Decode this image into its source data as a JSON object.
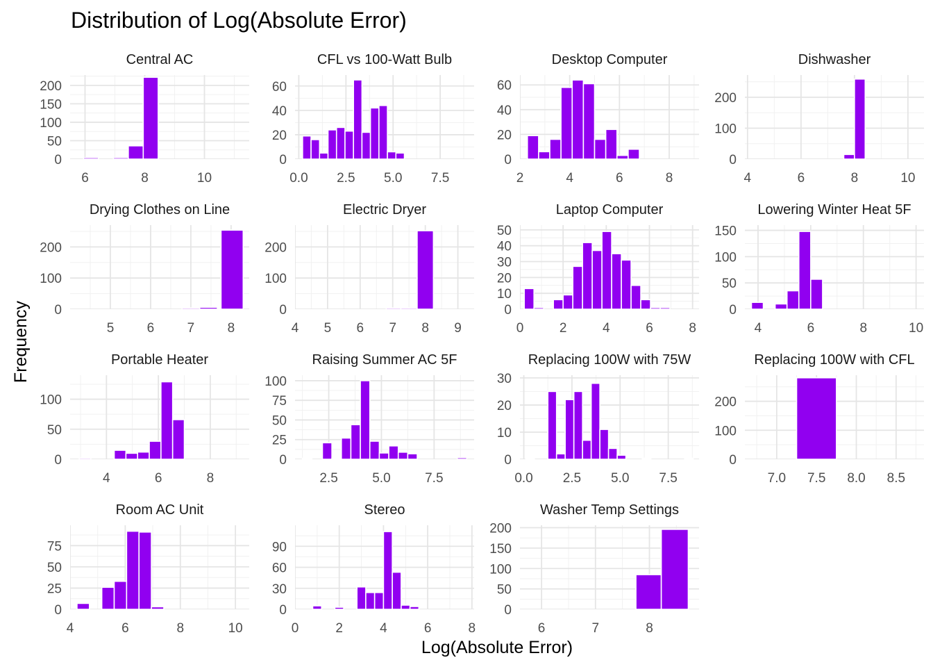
{
  "chart_data": {
    "type": "bar",
    "title": "Distribution of Log(Absolute Error)",
    "xlabel": "Log(Absolute Error)",
    "ylabel": "Frequency",
    "bar_color": "#9100F0",
    "grid": true,
    "legend": "none",
    "facets": [
      {
        "name": "Central AC",
        "xlim": [
          5.5,
          11.5
        ],
        "ylim": [
          0,
          228
        ],
        "xticks": [
          6,
          8,
          10
        ],
        "yticks": [
          0,
          50,
          100,
          150,
          200
        ],
        "bins": [
          [
            5.95,
            6.45,
            4
          ],
          [
            6.95,
            7.45,
            4
          ],
          [
            7.45,
            7.95,
            36
          ],
          [
            7.95,
            8.45,
            222
          ]
        ]
      },
      {
        "name": "CFL vs 100-Watt Bulb",
        "xlim": [
          -0.2,
          9.3
        ],
        "ylim": [
          0,
          69
        ],
        "xticks": [
          0.0,
          2.5,
          5.0,
          7.5
        ],
        "yticks": [
          0,
          20,
          40,
          60
        ],
        "bins": [
          [
            0.2,
            0.65,
            19
          ],
          [
            0.65,
            1.1,
            16
          ],
          [
            1.1,
            1.55,
            5
          ],
          [
            1.55,
            2.0,
            24
          ],
          [
            2.0,
            2.45,
            26
          ],
          [
            2.45,
            2.9,
            23
          ],
          [
            2.9,
            3.35,
            65
          ],
          [
            3.35,
            3.8,
            22
          ],
          [
            3.8,
            4.25,
            42
          ],
          [
            4.25,
            4.7,
            44
          ],
          [
            4.7,
            5.15,
            6
          ],
          [
            5.15,
            5.6,
            5
          ]
        ]
      },
      {
        "name": "Desktop Computer",
        "xlim": [
          2.0,
          9.2
        ],
        "ylim": [
          0,
          68
        ],
        "xticks": [
          2,
          4,
          6,
          8
        ],
        "yticks": [
          0,
          20,
          40,
          60
        ],
        "bins": [
          [
            2.3,
            2.75,
            19
          ],
          [
            2.75,
            3.2,
            6
          ],
          [
            3.2,
            3.65,
            16
          ],
          [
            3.65,
            4.1,
            58
          ],
          [
            4.1,
            4.55,
            64
          ],
          [
            4.55,
            5.0,
            61
          ],
          [
            5.0,
            5.45,
            16
          ],
          [
            5.45,
            5.9,
            24
          ],
          [
            5.9,
            6.35,
            3
          ],
          [
            6.35,
            6.8,
            8
          ]
        ]
      },
      {
        "name": "Dishwasher",
        "xlim": [
          3.9,
          10.6
        ],
        "ylim": [
          0,
          272
        ],
        "xticks": [
          4,
          6,
          8,
          10
        ],
        "yticks": [
          0,
          100,
          200
        ],
        "bins": [
          [
            7.6,
            8.0,
            15
          ],
          [
            8.0,
            8.4,
            259
          ]
        ]
      },
      {
        "name": "Drying Clothes on Line",
        "xlim": [
          4.0,
          8.45
        ],
        "ylim": [
          0,
          270
        ],
        "xticks": [
          5,
          6,
          7,
          8
        ],
        "yticks": [
          0,
          100,
          200
        ],
        "bins": [
          [
            6.78,
            7.22,
            4
          ],
          [
            7.22,
            7.66,
            6
          ],
          [
            7.66,
            8.1,
            2
          ],
          [
            7.75,
            8.3,
            254
          ]
        ]
      },
      {
        "name": "Electric Dryer",
        "xlim": [
          4.0,
          9.5
        ],
        "ylim": [
          0,
          270
        ],
        "xticks": [
          4,
          5,
          6,
          7,
          8,
          9
        ],
        "yticks": [
          0,
          100,
          200
        ],
        "bins": [
          [
            6.8,
            7.25,
            4
          ],
          [
            7.25,
            7.75,
            4
          ],
          [
            7.75,
            8.25,
            252
          ]
        ]
      },
      {
        "name": "Laptop Computer",
        "xlim": [
          0.0,
          8.3
        ],
        "ylim": [
          0,
          53
        ],
        "xticks": [
          0,
          2,
          4,
          6,
          8
        ],
        "yticks": [
          0,
          10,
          20,
          30,
          40,
          50
        ],
        "bins": [
          [
            0.2,
            0.65,
            13
          ],
          [
            0.65,
            1.1,
            1
          ],
          [
            1.55,
            2.0,
            6
          ],
          [
            2.0,
            2.45,
            9
          ],
          [
            2.45,
            2.9,
            27
          ],
          [
            2.9,
            3.35,
            42
          ],
          [
            3.35,
            3.8,
            37
          ],
          [
            3.8,
            4.25,
            49
          ],
          [
            4.25,
            4.7,
            35
          ],
          [
            4.7,
            5.15,
            31
          ],
          [
            5.15,
            5.6,
            15
          ],
          [
            5.6,
            6.05,
            6
          ],
          [
            6.05,
            6.5,
            1
          ],
          [
            6.5,
            6.95,
            1
          ]
        ]
      },
      {
        "name": "Lowering Winter Heat 5F",
        "xlim": [
          3.5,
          10.3
        ],
        "ylim": [
          0,
          160
        ],
        "xticks": [
          4,
          6,
          8,
          10
        ],
        "yticks": [
          0,
          50,
          100,
          150
        ],
        "bins": [
          [
            3.75,
            4.2,
            13
          ],
          [
            4.65,
            5.1,
            10
          ],
          [
            5.1,
            5.55,
            35
          ],
          [
            5.55,
            6.0,
            148
          ],
          [
            6.0,
            6.45,
            57
          ]
        ]
      },
      {
        "name": "Portable Heater",
        "xlim": [
          2.6,
          9.5
        ],
        "ylim": [
          0,
          140
        ],
        "xticks": [
          4,
          6,
          8
        ],
        "yticks": [
          0,
          50,
          100
        ],
        "bins": [
          [
            2.95,
            3.4,
            2
          ],
          [
            4.3,
            4.75,
            15
          ],
          [
            4.75,
            5.2,
            10
          ],
          [
            5.2,
            5.65,
            12
          ],
          [
            5.65,
            6.1,
            30
          ],
          [
            6.1,
            6.55,
            129
          ],
          [
            6.55,
            7.0,
            66
          ]
        ]
      },
      {
        "name": "Raising Summer AC 5F",
        "xlim": [
          0.9,
          9.4
        ],
        "ylim": [
          0,
          107
        ],
        "xticks": [
          2.5,
          5.0,
          7.5
        ],
        "yticks": [
          0,
          25,
          50,
          75,
          100
        ],
        "bins": [
          [
            1.25,
            1.7,
            1
          ],
          [
            2.2,
            2.65,
            21
          ],
          [
            2.65,
            3.1,
            1
          ],
          [
            3.1,
            3.55,
            27
          ],
          [
            3.55,
            4.0,
            44
          ],
          [
            4.0,
            4.45,
            100
          ],
          [
            4.45,
            4.9,
            23
          ],
          [
            4.9,
            5.35,
            8
          ],
          [
            5.35,
            5.8,
            17
          ],
          [
            5.8,
            6.25,
            9
          ],
          [
            6.25,
            6.7,
            7
          ],
          [
            8.6,
            9.05,
            2
          ]
        ]
      },
      {
        "name": "Replacing 100W with 75W",
        "xlim": [
          -0.2,
          9.1
        ],
        "ylim": [
          0,
          31
        ],
        "xticks": [
          0.0,
          2.5,
          5.0,
          7.5
        ],
        "yticks": [
          0,
          10,
          20,
          30
        ],
        "bins": [
          [
            0.1,
            0.55,
            0.4
          ],
          [
            1.25,
            1.7,
            25
          ],
          [
            1.7,
            2.15,
            2
          ],
          [
            2.15,
            2.6,
            22
          ],
          [
            2.6,
            3.05,
            25
          ],
          [
            3.05,
            3.5,
            7
          ],
          [
            3.5,
            3.95,
            28
          ],
          [
            3.95,
            4.4,
            11
          ],
          [
            4.4,
            4.85,
            4
          ],
          [
            4.85,
            5.3,
            1.5
          ],
          [
            6.15,
            6.6,
            0.4
          ],
          [
            8.35,
            8.8,
            0.4
          ]
        ]
      },
      {
        "name": "Replacing 100W with CFL",
        "xlim": [
          6.6,
          8.85
        ],
        "ylim": [
          0,
          290
        ],
        "xticks": [
          7.0,
          7.5,
          8.0,
          8.5
        ],
        "yticks": [
          0,
          100,
          200
        ],
        "bins": [
          [
            7.25,
            7.75,
            281
          ]
        ]
      },
      {
        "name": "Room AC Unit",
        "xlim": [
          4.0,
          10.5
        ],
        "ylim": [
          0,
          99
        ],
        "xticks": [
          4,
          6,
          8,
          10
        ],
        "yticks": [
          0,
          25,
          50,
          75
        ],
        "bins": [
          [
            4.25,
            4.7,
            7
          ],
          [
            5.15,
            5.6,
            26
          ],
          [
            5.6,
            6.05,
            33
          ],
          [
            6.05,
            6.5,
            92
          ],
          [
            6.5,
            6.95,
            91
          ],
          [
            6.95,
            7.4,
            3
          ]
        ]
      },
      {
        "name": "Stereo",
        "xlim": [
          0.0,
          8.1
        ],
        "ylim": [
          0,
          120
        ],
        "xticks": [
          0,
          2,
          4,
          6,
          8
        ],
        "yticks": [
          0,
          30,
          60,
          90
        ],
        "bins": [
          [
            0.8,
            1.2,
            5
          ],
          [
            1.8,
            2.2,
            3
          ],
          [
            2.8,
            3.2,
            32
          ],
          [
            3.2,
            3.6,
            24
          ],
          [
            3.6,
            4.0,
            24
          ],
          [
            4.0,
            4.4,
            111
          ],
          [
            4.4,
            4.8,
            53
          ],
          [
            4.8,
            5.2,
            6
          ],
          [
            5.2,
            5.6,
            4
          ]
        ]
      },
      {
        "name": "Washer Temp Settings",
        "xlim": [
          5.6,
          8.92
        ],
        "ylim": [
          0,
          206
        ],
        "xticks": [
          6,
          7,
          8
        ],
        "yticks": [
          0,
          50,
          100,
          150,
          200
        ],
        "bins": [
          [
            7.75,
            8.22,
            85
          ],
          [
            8.22,
            8.72,
            196
          ]
        ]
      }
    ]
  }
}
